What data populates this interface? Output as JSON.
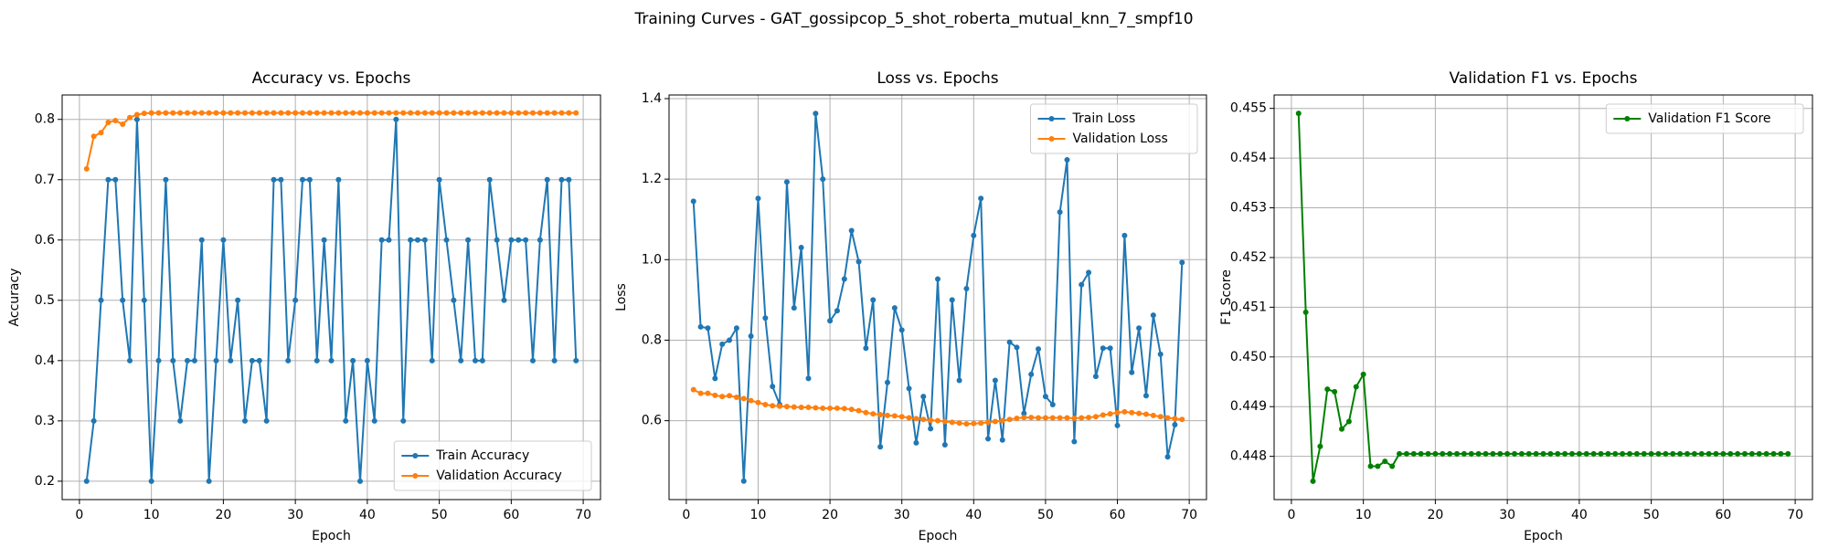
{
  "title": "Training Curves - GAT_gossipcop_5_shot_roberta_mutual_knn_7_smpf10",
  "chart_data": [
    {
      "type": "line",
      "title": "Accuracy vs. Epochs",
      "x_label": "Epoch",
      "y_label": "Accuracy",
      "grid": true,
      "legend": "lower right",
      "x": [
        1,
        2,
        3,
        4,
        5,
        6,
        7,
        8,
        9,
        10,
        11,
        12,
        13,
        14,
        15,
        16,
        17,
        18,
        19,
        20,
        21,
        22,
        23,
        24,
        25,
        26,
        27,
        28,
        29,
        30,
        31,
        32,
        33,
        34,
        35,
        36,
        37,
        38,
        39,
        40,
        41,
        42,
        43,
        44,
        45,
        46,
        47,
        48,
        49,
        50,
        51,
        52,
        53,
        54,
        55,
        56,
        57,
        58,
        59,
        60,
        61,
        62,
        63,
        64,
        65,
        66,
        67,
        68,
        69
      ],
      "xlim": [
        -2.4,
        72.4
      ],
      "xticks": [
        0,
        10,
        20,
        30,
        40,
        50,
        60,
        70
      ],
      "ylim": [
        0.1695,
        0.8405
      ],
      "yticks": [
        0.2,
        0.3,
        0.4,
        0.5,
        0.6,
        0.7,
        0.8
      ],
      "series": [
        {
          "name": "Train Accuracy",
          "color": "#1f77b4",
          "values": [
            0.2,
            0.3,
            0.5,
            0.7,
            0.7,
            0.5,
            0.4,
            0.8,
            0.5,
            0.2,
            0.4,
            0.7,
            0.4,
            0.3,
            0.4,
            0.4,
            0.6,
            0.2,
            0.4,
            0.6,
            0.4,
            0.5,
            0.3,
            0.4,
            0.4,
            0.3,
            0.7,
            0.7,
            0.4,
            0.5,
            0.7,
            0.7,
            0.4,
            0.6,
            0.4,
            0.7,
            0.3,
            0.4,
            0.2,
            0.4,
            0.3,
            0.6,
            0.6,
            0.8,
            0.3,
            0.6,
            0.6,
            0.6,
            0.4,
            0.7,
            0.6,
            0.5,
            0.4,
            0.6,
            0.4,
            0.4,
            0.7,
            0.6,
            0.5,
            0.6,
            0.6,
            0.6,
            0.4,
            0.6,
            0.7,
            0.4,
            0.7,
            0.7,
            0.4
          ]
        },
        {
          "name": "Validation Accuracy",
          "color": "#ff7f0e",
          "values": [
            0.718,
            0.772,
            0.778,
            0.795,
            0.798,
            0.792,
            0.803,
            0.808,
            0.81,
            0.8108,
            0.8108,
            0.8108,
            0.8108,
            0.8108,
            0.8108,
            0.8108,
            0.8108,
            0.8108,
            0.8108,
            0.8108,
            0.8108,
            0.8108,
            0.8108,
            0.8108,
            0.8108,
            0.8108,
            0.8108,
            0.8108,
            0.8108,
            0.8108,
            0.8108,
            0.8108,
            0.8108,
            0.8108,
            0.8108,
            0.8108,
            0.8108,
            0.8108,
            0.8108,
            0.8108,
            0.8108,
            0.8108,
            0.8108,
            0.8108,
            0.8108,
            0.8108,
            0.8108,
            0.8108,
            0.8108,
            0.8108,
            0.8108,
            0.8108,
            0.8108,
            0.8108,
            0.8108,
            0.8108,
            0.8108,
            0.8108,
            0.8108,
            0.8108,
            0.8108,
            0.8108,
            0.8108,
            0.8108,
            0.8108,
            0.8108,
            0.8108,
            0.8108,
            0.8108
          ]
        }
      ]
    },
    {
      "type": "line",
      "title": "Loss vs. Epochs",
      "x_label": "Epoch",
      "y_label": "Loss",
      "grid": true,
      "legend": "upper right",
      "x": [
        1,
        2,
        3,
        4,
        5,
        6,
        7,
        8,
        9,
        10,
        11,
        12,
        13,
        14,
        15,
        16,
        17,
        18,
        19,
        20,
        21,
        22,
        23,
        24,
        25,
        26,
        27,
        28,
        29,
        30,
        31,
        32,
        33,
        34,
        35,
        36,
        37,
        38,
        39,
        40,
        41,
        42,
        43,
        44,
        45,
        46,
        47,
        48,
        49,
        50,
        51,
        52,
        53,
        54,
        55,
        56,
        57,
        58,
        59,
        60,
        61,
        62,
        63,
        64,
        65,
        66,
        67,
        68,
        69
      ],
      "xlim": [
        -2.4,
        72.4
      ],
      "xticks": [
        0,
        10,
        20,
        30,
        40,
        50,
        60,
        70
      ],
      "ylim": [
        0.404,
        1.409
      ],
      "yticks": [
        0.6,
        0.8,
        {
          "value": 1.0,
          "label": "1.0"
        },
        1.2,
        1.4
      ],
      "series": [
        {
          "name": "Train Loss",
          "color": "#1f77b4",
          "values": [
            1.145,
            0.833,
            0.83,
            0.705,
            0.79,
            0.8,
            0.83,
            0.45,
            0.81,
            1.152,
            0.855,
            0.685,
            0.64,
            1.193,
            0.88,
            1.03,
            0.705,
            1.363,
            1.2,
            0.848,
            0.873,
            0.952,
            1.072,
            0.995,
            0.78,
            0.9,
            0.535,
            0.695,
            0.88,
            0.825,
            0.68,
            0.545,
            0.66,
            0.58,
            0.952,
            0.54,
            0.9,
            0.7,
            0.928,
            1.06,
            1.152,
            0.555,
            0.7,
            0.552,
            0.795,
            0.782,
            0.618,
            0.715,
            0.778,
            0.66,
            0.64,
            1.118,
            1.248,
            0.548,
            0.938,
            0.968,
            0.71,
            0.78,
            0.78,
            0.588,
            1.06,
            0.72,
            0.83,
            0.662,
            0.862,
            0.765,
            0.51,
            0.59,
            0.993
          ]
        },
        {
          "name": "Validation Loss",
          "color": "#ff7f0e",
          "values": [
            0.677,
            0.668,
            0.668,
            0.663,
            0.66,
            0.662,
            0.658,
            0.655,
            0.65,
            0.645,
            0.64,
            0.637,
            0.636,
            0.635,
            0.634,
            0.633,
            0.633,
            0.632,
            0.631,
            0.631,
            0.631,
            0.63,
            0.628,
            0.625,
            0.62,
            0.617,
            0.615,
            0.613,
            0.612,
            0.61,
            0.607,
            0.605,
            0.603,
            0.601,
            0.6,
            0.598,
            0.596,
            0.594,
            0.592,
            0.593,
            0.594,
            0.596,
            0.598,
            0.6,
            0.603,
            0.606,
            0.608,
            0.608,
            0.607,
            0.607,
            0.607,
            0.607,
            0.607,
            0.606,
            0.607,
            0.608,
            0.61,
            0.614,
            0.617,
            0.62,
            0.622,
            0.62,
            0.618,
            0.616,
            0.613,
            0.61,
            0.607,
            0.605,
            0.603
          ]
        }
      ]
    },
    {
      "type": "line",
      "title": "Validation F1 vs. Epochs",
      "x_label": "Epoch",
      "y_label": "F1 Score",
      "grid": true,
      "legend": "upper right",
      "x": [
        1,
        2,
        3,
        4,
        5,
        6,
        7,
        8,
        9,
        10,
        11,
        12,
        13,
        14,
        15,
        16,
        17,
        18,
        19,
        20,
        21,
        22,
        23,
        24,
        25,
        26,
        27,
        28,
        29,
        30,
        31,
        32,
        33,
        34,
        35,
        36,
        37,
        38,
        39,
        40,
        41,
        42,
        43,
        44,
        45,
        46,
        47,
        48,
        49,
        50,
        51,
        52,
        53,
        54,
        55,
        56,
        57,
        58,
        59,
        60,
        61,
        62,
        63,
        64,
        65,
        66,
        67,
        68,
        69
      ],
      "xlim": [
        -2.4,
        72.4
      ],
      "xticks": [
        0,
        10,
        20,
        30,
        40,
        50,
        60,
        70
      ],
      "ylim": [
        0.44713,
        0.45527
      ],
      "yticks": [
        0.448,
        0.449,
        {
          "value": 0.45,
          "label": "0.450"
        },
        0.451,
        0.452,
        0.453,
        0.454,
        0.455
      ],
      "series": [
        {
          "name": "Validation F1 Score",
          "color": "#008000",
          "values": [
            0.4549,
            0.4509,
            0.4475,
            0.4482,
            0.44935,
            0.4493,
            0.44855,
            0.4487,
            0.4494,
            0.44965,
            0.4478,
            0.4478,
            0.4479,
            0.4478,
            0.44805,
            0.44805,
            0.44805,
            0.44805,
            0.44805,
            0.44805,
            0.44805,
            0.44805,
            0.44805,
            0.44805,
            0.44805,
            0.44805,
            0.44805,
            0.44805,
            0.44805,
            0.44805,
            0.44805,
            0.44805,
            0.44805,
            0.44805,
            0.44805,
            0.44805,
            0.44805,
            0.44805,
            0.44805,
            0.44805,
            0.44805,
            0.44805,
            0.44805,
            0.44805,
            0.44805,
            0.44805,
            0.44805,
            0.44805,
            0.44805,
            0.44805,
            0.44805,
            0.44805,
            0.44805,
            0.44805,
            0.44805,
            0.44805,
            0.44805,
            0.44805,
            0.44805,
            0.44805,
            0.44805,
            0.44805,
            0.44805,
            0.44805,
            0.44805,
            0.44805,
            0.44805,
            0.44805,
            0.44805
          ]
        }
      ]
    }
  ]
}
